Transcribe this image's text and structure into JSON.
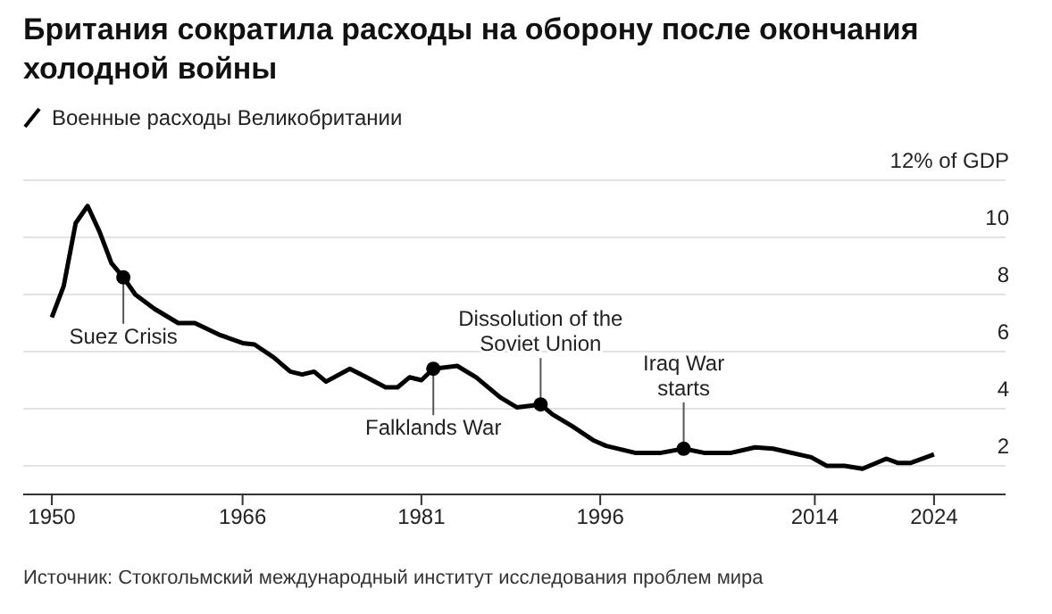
{
  "chart_data": {
    "type": "line",
    "title": "Британия сократила расходы на оборону после окончания холодной войны",
    "legend": "top left",
    "grid": "y",
    "marker": "none",
    "line_style": "solid",
    "xlim": [
      1947.6,
      2030
    ],
    "xticks": [
      1950,
      1966,
      1981,
      1996,
      2014,
      2024
    ],
    "ylim": [
      1,
      12
    ],
    "yticks": [
      {
        "value": 12,
        "label": "12% of GDP"
      },
      10,
      8,
      6,
      4,
      2
    ],
    "series": [
      {
        "name": "Военные расходы Великобритании",
        "color": "#000000",
        "x": [
          1950,
          1951,
          1952,
          1953,
          1954,
          1955,
          1956,
          1957,
          1958.6,
          1960.6,
          1962,
          1964,
          1966,
          1967,
          1968.6,
          1970,
          1971,
          1972,
          1973,
          1975,
          1976.4,
          1978,
          1979,
          1980,
          1981,
          1982,
          1984,
          1985.6,
          1987.6,
          1989,
          1991,
          1992,
          1993.6,
          1995.4,
          1996.5,
          1999,
          2001,
          2003,
          2004.8,
          2006.9,
          2009,
          2010.5,
          2013.7,
          2015,
          2016.5,
          2018,
          2020,
          2021,
          2022,
          2024
        ],
        "values": [
          7.2,
          8.3,
          10.5,
          11.1,
          10.2,
          9.1,
          8.6,
          8.0,
          7.5,
          7.0,
          7.0,
          6.6,
          6.3,
          6.25,
          5.8,
          5.3,
          5.2,
          5.3,
          4.95,
          5.4,
          5.1,
          4.75,
          4.75,
          5.1,
          5.0,
          5.4,
          5.5,
          5.1,
          4.4,
          4.05,
          4.15,
          3.8,
          3.4,
          2.9,
          2.7,
          2.45,
          2.45,
          2.6,
          2.45,
          2.45,
          2.65,
          2.6,
          2.3,
          2.0,
          2.0,
          1.9,
          2.25,
          2.1,
          2.1,
          2.4
        ]
      }
    ],
    "annotations": [
      {
        "text": "Suez Crisis",
        "x": 1956,
        "y": 8.6
      },
      {
        "text": "Falklands War",
        "x": 1982,
        "y": 5.4
      },
      {
        "text": "Dissolution of the\nSoviet Union",
        "x": 1991,
        "y": 4.15
      },
      {
        "text": "Iraq War\nstarts",
        "x": 2003,
        "y": 2.6
      },
      "Источник: Стокгольмский международный институт исследования проблем мира"
    ]
  }
}
